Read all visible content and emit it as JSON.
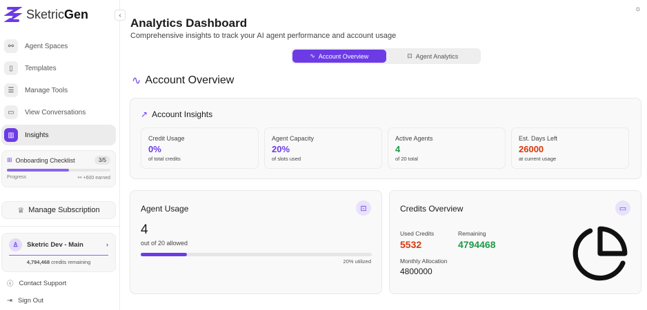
{
  "brand": {
    "name_a": "Sketric",
    "name_b": "Gen"
  },
  "sidebar": {
    "items": [
      {
        "label": "Agent Spaces",
        "icon": "route-icon"
      },
      {
        "label": "Templates",
        "icon": "tablet-icon"
      },
      {
        "label": "Manage Tools",
        "icon": "database-icon"
      },
      {
        "label": "View Conversations",
        "icon": "message-icon"
      },
      {
        "label": "Insights",
        "icon": "bar-chart-icon"
      }
    ],
    "onboarding": {
      "title": "Onboarding Checklist",
      "count": "3/5",
      "progress_label": "Progress",
      "earned": "+600 earned",
      "progress": 0.6
    },
    "manage_subscription": "Manage Subscription",
    "account": {
      "name": "Sketric Dev - Main",
      "credits": "4,794,468",
      "credits_suffix": "credits remaining"
    },
    "contact_support": "Contact Support",
    "sign_out": "Sign Out"
  },
  "header": {
    "title": "Analytics Dashboard",
    "subtitle": "Comprehensive insights to track your AI agent performance and account usage"
  },
  "tabs": [
    {
      "label": "Account Overview",
      "active": true
    },
    {
      "label": "Agent Analytics",
      "active": false
    }
  ],
  "section_title": "Account Overview",
  "insights": {
    "title": "Account Insights",
    "tiles": [
      {
        "label": "Credit Usage",
        "value": "0%",
        "sub": "of total credits",
        "color": "#6c3be6"
      },
      {
        "label": "Agent Capacity",
        "value": "20%",
        "sub": "of slots used",
        "color": "#6c3be6"
      },
      {
        "label": "Active Agents",
        "value": "4",
        "sub": "of 20 total",
        "color": "#1f9a4a"
      },
      {
        "label": "Est. Days Left",
        "value": "26000",
        "sub": "at current usage",
        "color": "#d9360b"
      }
    ]
  },
  "agent_usage": {
    "title": "Agent Usage",
    "value": "4",
    "sub": "out of 20 allowed",
    "utilized": "20% utilized",
    "progress": 0.2
  },
  "credits": {
    "title": "Credits Overview",
    "used_label": "Used Credits",
    "used": "5532",
    "remaining_label": "Remaining",
    "remaining": "4794468",
    "monthly_label": "Monthly Allocation",
    "monthly": "4800000"
  },
  "colors": {
    "accent": "#6c3be6",
    "green": "#1f9a4a",
    "red": "#d9360b"
  }
}
